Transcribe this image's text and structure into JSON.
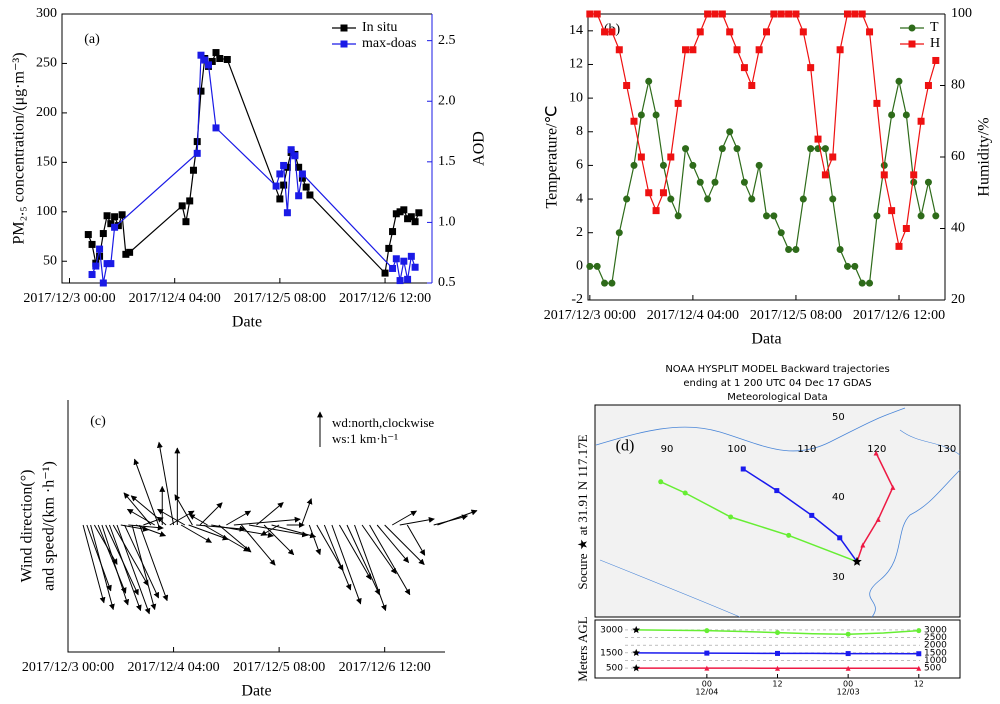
{
  "chart_data": [
    {
      "type": "line",
      "label": "(a)",
      "x_label": "Date",
      "y_label": "PM₂.₅ concentration/(μg·m⁻³)",
      "y2_label": "AOD",
      "xlim": [
        -2,
        96.5
      ],
      "xticks": [
        {
          "value": 0,
          "label": "2017/12/3 00:00"
        },
        {
          "value": 28,
          "label": "2017/12/4 04:00"
        },
        {
          "value": 56,
          "label": "2017/12/5 08:00"
        },
        {
          "value": 84,
          "label": "2017/12/6 12:00"
        }
      ],
      "ylim": [
        28,
        300
      ],
      "yticks": [
        50,
        100,
        150,
        200,
        250,
        300
      ],
      "y2lim": [
        0.5,
        2.72
      ],
      "y2ticks": [
        0.5,
        {
          "value": 1,
          "label": "1.0"
        },
        1.5,
        {
          "value": 2,
          "label": "2.0"
        },
        2.5
      ],
      "legend": "upper right",
      "series": [
        {
          "name": "In situ",
          "color": "#000000",
          "marker": "square",
          "x": [
            5,
            6,
            7,
            8,
            9,
            10,
            11,
            12,
            13,
            14,
            15,
            16,
            30,
            31,
            32,
            33,
            34,
            35,
            36,
            37,
            38,
            39,
            40,
            42,
            56,
            57,
            58,
            59,
            60,
            61,
            62,
            63,
            64,
            84,
            85,
            86,
            87,
            88,
            89,
            90,
            91,
            92,
            93
          ],
          "values": [
            77,
            67,
            48,
            55,
            78,
            96,
            88,
            95,
            86,
            97,
            57,
            59,
            106,
            90,
            111,
            142,
            171,
            222,
            255,
            247,
            252,
            261,
            255,
            254,
            113,
            127,
            145,
            160,
            158,
            145,
            134,
            125,
            117,
            38,
            63,
            80,
            98,
            100,
            102,
            93,
            95,
            90,
            99
          ]
        },
        {
          "name": "max-doas",
          "color": "#1a1ae6",
          "marker": "square",
          "axis": "y2",
          "x": [
            6,
            7,
            8,
            9,
            10,
            11,
            12,
            34,
            35,
            36,
            37,
            39,
            55,
            56,
            57,
            58,
            59,
            60,
            61,
            62,
            86,
            87,
            88,
            89,
            90,
            91,
            92
          ],
          "values": [
            0.57,
            0.64,
            0.78,
            0.5,
            0.66,
            0.66,
            0.96,
            1.57,
            2.38,
            2.34,
            2.3,
            1.78,
            1.3,
            1.4,
            1.47,
            1.08,
            1.6,
            1.55,
            1.22,
            1.4,
            0.62,
            0.7,
            0.52,
            0.68,
            0.53,
            0.72,
            0.63
          ]
        }
      ]
    },
    {
      "type": "line",
      "label": "(b)",
      "x_label": "Data",
      "y_label": "Temperature/℃",
      "y2_label": "Humidity/%",
      "xlim": [
        -0.5,
        96.5
      ],
      "xticks": [
        {
          "value": 0,
          "label": "2017/12/3 00:00"
        },
        {
          "value": 28,
          "label": "2017/12/4 04:00"
        },
        {
          "value": 56,
          "label": "2017/12/5 08:00"
        },
        {
          "value": 84,
          "label": "2017/12/6 12:00"
        }
      ],
      "ylim": [
        -2,
        15
      ],
      "yticks": [
        -2,
        0,
        2,
        4,
        6,
        8,
        10,
        12,
        14
      ],
      "y2lim": [
        20,
        100
      ],
      "y2ticks": [
        20,
        40,
        60,
        80,
        100
      ],
      "legend": "upper right",
      "series": [
        {
          "name": "T",
          "color": "#2e6b1a",
          "marker": "circle",
          "x": [
            0,
            2,
            4,
            6,
            8,
            10,
            12,
            14,
            16,
            18,
            20,
            22,
            24,
            26,
            28,
            30,
            32,
            34,
            36,
            38,
            40,
            42,
            44,
            46,
            48,
            50,
            52,
            54,
            56,
            58,
            60,
            62,
            64,
            66,
            68,
            70,
            72,
            74,
            76,
            78,
            80,
            82,
            84,
            86,
            88,
            90,
            92,
            94
          ],
          "values": [
            0,
            0,
            -1,
            -1,
            2,
            4,
            6,
            9,
            11,
            9,
            6,
            4,
            3,
            7,
            6,
            5,
            4,
            5,
            7,
            8,
            7,
            5,
            4,
            6,
            3,
            3,
            2,
            1,
            1,
            4,
            7,
            7,
            7,
            4,
            1,
            0,
            0,
            -1,
            -1,
            3,
            6,
            9,
            11,
            9,
            5,
            3,
            5,
            3
          ]
        },
        {
          "name": "H",
          "color": "#ee1111",
          "marker": "square",
          "axis": "y2",
          "x": [
            0,
            2,
            4,
            6,
            8,
            10,
            12,
            14,
            16,
            18,
            20,
            22,
            24,
            26,
            28,
            30,
            32,
            34,
            36,
            38,
            40,
            42,
            44,
            46,
            48,
            50,
            52,
            54,
            56,
            58,
            60,
            62,
            64,
            66,
            68,
            70,
            72,
            74,
            76,
            78,
            80,
            82,
            84,
            86,
            88,
            90,
            92,
            94
          ],
          "values": [
            100,
            100,
            95,
            95,
            90,
            80,
            70,
            60,
            50,
            45,
            50,
            60,
            75,
            90,
            90,
            95,
            100,
            100,
            100,
            95,
            90,
            85,
            80,
            90,
            95,
            100,
            100,
            100,
            100,
            95,
            85,
            65,
            55,
            60,
            90,
            100,
            100,
            100,
            95,
            75,
            55,
            45,
            35,
            40,
            55,
            70,
            80,
            87
          ]
        }
      ]
    },
    {
      "type": "quiver",
      "label": "(c)",
      "x_label": "Date",
      "y_label": [
        "Wind direction(°)",
        "and speed/(km ·h⁻¹)"
      ],
      "key": [
        "wd:north,clockwise",
        "ws:1 km·h⁻¹"
      ],
      "key_speed": 1,
      "xlim": [
        0,
        100
      ],
      "xticks": [
        {
          "value": 0,
          "label": "2017/12/3 00:00"
        },
        {
          "value": 28,
          "label": "2017/12/4 04:00"
        },
        {
          "value": 56,
          "label": "2017/12/5 08:00"
        },
        {
          "value": 84,
          "label": "2017/12/6 12:00"
        }
      ],
      "x": [
        4,
        5,
        6,
        7,
        8,
        9,
        10,
        11,
        12,
        13,
        14,
        15,
        16,
        17,
        18,
        19,
        20,
        22,
        23,
        24,
        25,
        26,
        27,
        28,
        29,
        30,
        31,
        32,
        33,
        34,
        35,
        36,
        37,
        38,
        40,
        42,
        44,
        46,
        48,
        50,
        52,
        54,
        56,
        58,
        62,
        64,
        66,
        68,
        70,
        72,
        74,
        76,
        78,
        80,
        82,
        84,
        86,
        88,
        90,
        97,
        98
      ],
      "direction": [
        165,
        160,
        165,
        150,
        158,
        162,
        155,
        160,
        150,
        160,
        100,
        155,
        95,
        165,
        110,
        160,
        70,
        320,
        300,
        340,
        0,
        310,
        60,
        350,
        0,
        120,
        300,
        110,
        330,
        95,
        45,
        120,
        300,
        100,
        130,
        60,
        85,
        140,
        100,
        50,
        135,
        105,
        240,
        90,
        20,
        160,
        150,
        158,
        160,
        150,
        155,
        160,
        145,
        150,
        140,
        135,
        60,
        80,
        150,
        75,
        70
      ],
      "speed": [
        2.3,
        2.0,
        2.5,
        1.3,
        2.1,
        2.4,
        2.2,
        2.6,
        2.0,
        2.7,
        0.8,
        2.3,
        1.0,
        2.5,
        0.9,
        2.3,
        0.6,
        1.2,
        0.9,
        2.0,
        1.1,
        1.3,
        0.8,
        2.4,
        2.2,
        1.0,
        0.9,
        1.2,
        1.0,
        1.4,
        0.9,
        1.5,
        0.6,
        1.8,
        1.2,
        0.8,
        1.9,
        1.5,
        1.7,
        1.0,
        1.2,
        1.3,
        0.6,
        0.5,
        0.8,
        0.9,
        1.5,
        2.0,
        2.4,
        1.8,
        2.2,
        2.6,
        1.7,
        2.3,
        1.4,
        1.6,
        0.8,
        1.0,
        1.0,
        1.0,
        1.2
      ]
    },
    {
      "type": "trajectory",
      "title": [
        "NOAA HYSPLIT MODEL Backward trajectories",
        "ending at 1 200 UTC 04 Dec 17 GDAS",
        "Meteorological Data"
      ],
      "label": "(d)",
      "source_label": "Socure ★ at 31.91 N 117.17E",
      "lonlim": [
        79.7,
        131.9
      ],
      "latlim": [
        25,
        51.5
      ],
      "lon_labels": [
        90,
        100,
        110,
        120,
        130
      ],
      "lat_labels": [
        30,
        40,
        50
      ],
      "series": [
        {
          "color": "#66ee33",
          "marker": "circle",
          "lon": [
            117.17,
            107.4,
            99.1,
            92.6,
            89.1
          ],
          "lat": [
            31.91,
            35.2,
            37.5,
            40.5,
            41.9
          ]
        },
        {
          "color": "#1a1aee",
          "marker": "square",
          "lon": [
            117.17,
            114.7,
            110.7,
            105.7,
            100.9
          ],
          "lat": [
            31.91,
            34.9,
            37.7,
            40.8,
            43.5
          ]
        },
        {
          "color": "#ee1a44",
          "marker": "triangle",
          "lon": [
            117.17,
            118,
            120.2,
            122.3,
            119.9
          ],
          "lat": [
            31.91,
            34,
            37.2,
            41.2,
            45.5
          ]
        }
      ],
      "profile": {
        "y_label": "Meters AGL",
        "xlim": [
          -7,
          55
        ],
        "xticks": [
          {
            "value": 12,
            "label": "00",
            "date": "12/04"
          },
          {
            "value": 24,
            "label": "12"
          },
          {
            "value": 36,
            "label": "00",
            "date": "12/03"
          },
          {
            "value": 48,
            "label": "12"
          }
        ],
        "ylim": [
          -150,
          3650
        ],
        "yticks": [
          3000,
          1500,
          500
        ],
        "y2ticks": [
          3000,
          2500,
          2000,
          1500,
          1000,
          500
        ],
        "x": [
          0,
          6,
          12,
          18,
          24,
          30,
          36,
          42,
          48
        ],
        "series": [
          {
            "color": "#66ee33",
            "marker": "circle",
            "values": [
              3000,
              2980,
              2950,
              2900,
              2820,
              2750,
              2720,
              2800,
              2950
            ]
          },
          {
            "color": "#1a1aee",
            "marker": "square",
            "values": [
              1500,
              1490,
              1480,
              1470,
              1460,
              1460,
              1450,
              1450,
              1440
            ]
          },
          {
            "color": "#ee1a44",
            "marker": "triangle",
            "values": [
              500,
              500,
              500,
              495,
              490,
              490,
              490,
              490,
              490
            ]
          }
        ]
      }
    }
  ]
}
